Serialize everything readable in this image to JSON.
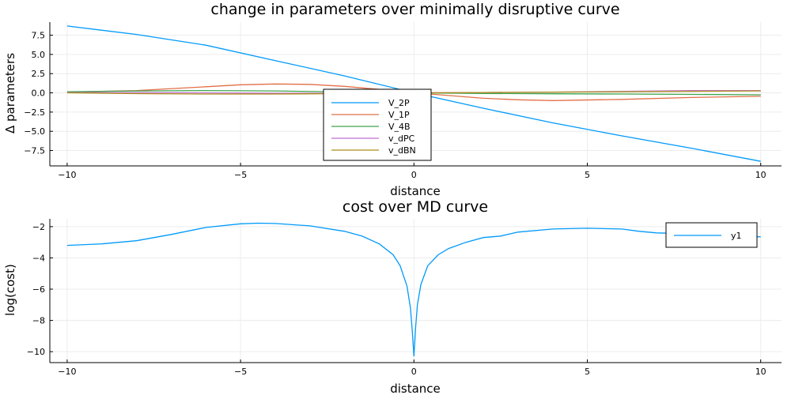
{
  "colors": {
    "blue": "#009AFA",
    "orange": "#E36F47",
    "green": "#3EA44E",
    "purple": "#C271D2",
    "olive": "#AC8D18"
  },
  "chart_data": [
    {
      "type": "line",
      "title": "change in parameters over minimally disruptive curve",
      "xlabel": "distance",
      "ylabel": "Δ parameters",
      "xlim": [
        -10.5,
        10.6
      ],
      "ylim": [
        -9.5,
        9.2
      ],
      "xticks": [
        -10,
        -5,
        0,
        5,
        10
      ],
      "xtick_labels": [
        "−10",
        "−5",
        "0",
        "5",
        "10"
      ],
      "yticks": [
        7.5,
        5.0,
        2.5,
        0.0,
        -2.5,
        -5.0,
        -7.5
      ],
      "ytick_labels": [
        "7.5",
        "5.0",
        "2.5",
        "0.0",
        "−2.5",
        "−5.0",
        "−7.5"
      ],
      "grid": true,
      "legend": "center-bottom",
      "series": [
        {
          "name": "V_2P",
          "color": "#009AFA",
          "x": [
            -10,
            -8,
            -6,
            -4,
            -2,
            0,
            2,
            4,
            6,
            8,
            10
          ],
          "y": [
            8.7,
            7.6,
            6.2,
            4.2,
            2.2,
            0.0,
            -2.0,
            -3.9,
            -5.6,
            -7.2,
            -8.9
          ]
        },
        {
          "name": "V_1P",
          "color": "#E36F47",
          "x": [
            -10,
            -8,
            -6,
            -5,
            -4,
            -3,
            -2,
            -1,
            0,
            1,
            2,
            3,
            4,
            6,
            8,
            10
          ],
          "y": [
            0.1,
            0.3,
            0.8,
            1.05,
            1.15,
            1.1,
            0.85,
            0.45,
            0.0,
            -0.35,
            -0.7,
            -0.9,
            -1.0,
            -0.85,
            -0.6,
            -0.45
          ]
        },
        {
          "name": "V_4B",
          "color": "#3EA44E",
          "x": [
            -10,
            -8,
            -6,
            -4,
            -2,
            0,
            2,
            4,
            6,
            8,
            10
          ],
          "y": [
            0.15,
            0.25,
            0.3,
            0.25,
            0.12,
            0.0,
            -0.08,
            -0.12,
            -0.15,
            -0.2,
            -0.25
          ]
        },
        {
          "name": "v_dPC",
          "color": "#C271D2",
          "x": [
            -10,
            -8,
            -6,
            -4,
            -2,
            0,
            2,
            4,
            6,
            8,
            10
          ],
          "y": [
            0.05,
            0.05,
            0.0,
            -0.05,
            -0.05,
            0.0,
            0.05,
            0.1,
            0.2,
            0.3,
            0.3
          ]
        },
        {
          "name": "v_dBN",
          "color": "#AC8D18",
          "x": [
            -10,
            -8,
            -6,
            -4,
            -2,
            0,
            2,
            4,
            6,
            8,
            10
          ],
          "y": [
            0.0,
            -0.1,
            -0.15,
            -0.15,
            -0.1,
            0.0,
            0.05,
            0.1,
            0.15,
            0.2,
            0.25
          ]
        }
      ]
    },
    {
      "type": "line",
      "title": "cost over MD curve",
      "xlabel": "distance",
      "ylabel": "log(cost)",
      "xlim": [
        -10.5,
        10.6
      ],
      "ylim": [
        -10.7,
        -1.5
      ],
      "xticks": [
        -10,
        -5,
        0,
        5,
        10
      ],
      "xtick_labels": [
        "−10",
        "−5",
        "0",
        "5",
        "10"
      ],
      "yticks": [
        -2,
        -4,
        -6,
        -8,
        -10
      ],
      "ytick_labels": [
        "−2",
        "−4",
        "−6",
        "−8",
        "−10"
      ],
      "grid": true,
      "legend": "top-right",
      "series": [
        {
          "name": "y1",
          "color": "#009AFA",
          "x": [
            -10,
            -9,
            -8,
            -7,
            -6,
            -5,
            -4.5,
            -4,
            -3,
            -2,
            -1.5,
            -1,
            -0.6,
            -0.4,
            -0.2,
            -0.1,
            -0.05,
            0,
            0.05,
            0.1,
            0.2,
            0.4,
            0.7,
            1,
            1.5,
            2,
            2.5,
            3,
            4,
            5,
            6,
            6.5,
            7,
            8,
            9,
            10
          ],
          "y": [
            -3.2,
            -3.1,
            -2.9,
            -2.5,
            -2.05,
            -1.82,
            -1.78,
            -1.8,
            -1.95,
            -2.3,
            -2.6,
            -3.1,
            -3.8,
            -4.5,
            -5.8,
            -7.2,
            -8.6,
            -10.3,
            -8.4,
            -7.0,
            -5.7,
            -4.5,
            -3.8,
            -3.4,
            -3.0,
            -2.7,
            -2.6,
            -2.35,
            -2.15,
            -2.1,
            -2.15,
            -2.3,
            -2.4,
            -2.45,
            -2.55,
            -2.65
          ]
        }
      ]
    }
  ]
}
